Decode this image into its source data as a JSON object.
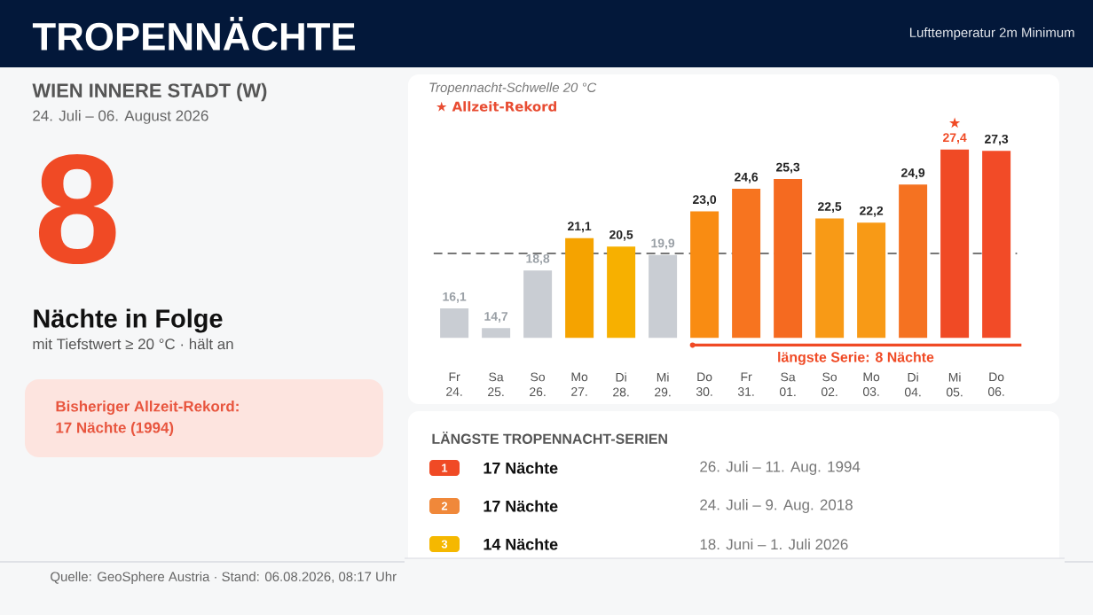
{
  "chart_data": [
    {
      "type": "other",
      "title": "TROPENNÄCHTE",
      "subtitle": "Lufttemperatur 2m Minimum",
      "annotations": [
        "WIEN INNERE STADT  (W)",
        "24. Juli – 06. August 2026",
        "8",
        "Nächte in Folge",
        "mit Tiefstwert ≥ 20 °C  ·  hält an",
        "Bisheriger Allzeit-Rekord:",
        "17 Nächte (1994)",
        "Quelle: GeoSphere Austria · Stand: 06.08.2026, 08:17 Uhr"
      ]
    },
    {
      "type": "bar",
      "categories": [
        "Fr 24.",
        "Sa 25.",
        "So 26.",
        "Mo 27.",
        "Di 28.",
        "Mi 29.",
        "Do 30.",
        "Fr 31.",
        "Sa 01.",
        "So 02.",
        "Mo 03.",
        "Di 04.",
        "Mi 05.",
        "Do 06."
      ],
      "values": [
        16.1,
        14.7,
        18.8,
        21.1,
        20.5,
        19.9,
        23.0,
        24.6,
        25.3,
        22.5,
        22.2,
        24.9,
        27.4,
        27.3
      ],
      "colors": [
        "#c9cdd3",
        "#c9cdd3",
        "#c9cdd3",
        "#f5a300",
        "#f7b000",
        "#c9cdd3",
        "#f98c12",
        "#f7741f",
        "#f56a20",
        "#f89a16",
        "#f89a16",
        "#f57221",
        "#f04a25",
        "#f24b27"
      ],
      "value_labels": [
        "16,1",
        "14,7",
        "18,8",
        "21,1",
        "20,5",
        "19,9",
        "23,0",
        "24,6",
        "25,3",
        "22,5",
        "22,2",
        "24,9",
        "27,4",
        "27,3"
      ],
      "ylim": [
        14,
        27.4
      ],
      "tick_labels": "x",
      "ref_lines": [
        {
          "axis": "y",
          "value": 20,
          "label": "Tropennacht-Schwelle 20 °C",
          "color": "#777777",
          "line_style": "dashed"
        }
      ],
      "annotations": [
        {
          "text": "★",
          "x": "Mi 05.",
          "y": 27.4
        },
        "★ Allzeit-Rekord",
        "längste Serie: 8 Nächte"
      ]
    },
    {
      "type": "other",
      "title": "LÄNGSTE TROPENNACHT-SERIEN",
      "colors": [
        "#f04a25",
        "#f0883a",
        "#f5b800"
      ],
      "annotations": [
        "1",
        "17 Nächte",
        "26. Juli – 11. Aug. 1994",
        "2",
        "17 Nächte",
        "24. Juli – 9. Aug. 2018",
        "3",
        "14 Nächte",
        "18. Juni – 1. Juli 2026"
      ]
    }
  ]
}
